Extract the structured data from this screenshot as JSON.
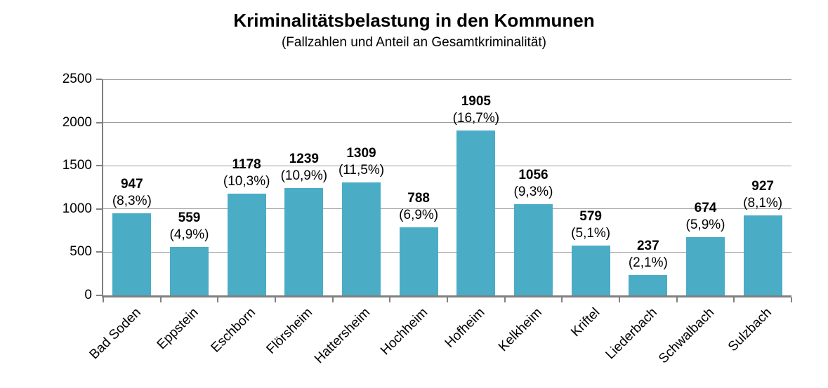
{
  "chart_data": {
    "type": "bar",
    "title": "Kriminalitätsbelastung in den Kommunen",
    "subtitle": "(Fallzahlen und Anteil an Gesamtkriminalität)",
    "categories": [
      "Bad Soden",
      "Eppstein",
      "Eschborn",
      "Flörsheim",
      "Hattersheim",
      "Hochheim",
      "Hofheim",
      "Kelkheim",
      "Kriftel",
      "Liederbach",
      "Schwalbach",
      "Sulzbach"
    ],
    "values": [
      947,
      559,
      1178,
      1239,
      1309,
      788,
      1905,
      1056,
      579,
      237,
      674,
      927
    ],
    "percent_labels": [
      "(8,3%)",
      "(4,9%)",
      "(10,3%)",
      "(10,9%)",
      "(11,5%)",
      "(6,9%)",
      "(16,7%)",
      "(9,3%)",
      "(5,1%)",
      "(2,1%)",
      "(5,9%)",
      "(8,1%)"
    ],
    "xlabel": "",
    "ylabel": "",
    "ylim": [
      0,
      2500
    ],
    "yticks": [
      0,
      500,
      1000,
      1500,
      2000,
      2500
    ],
    "grid": true,
    "legend": "none",
    "bar_color": "#4BACC6",
    "gridline_color": "#9C9C9C",
    "axis_color": "#808080",
    "text_color": "#000000"
  }
}
